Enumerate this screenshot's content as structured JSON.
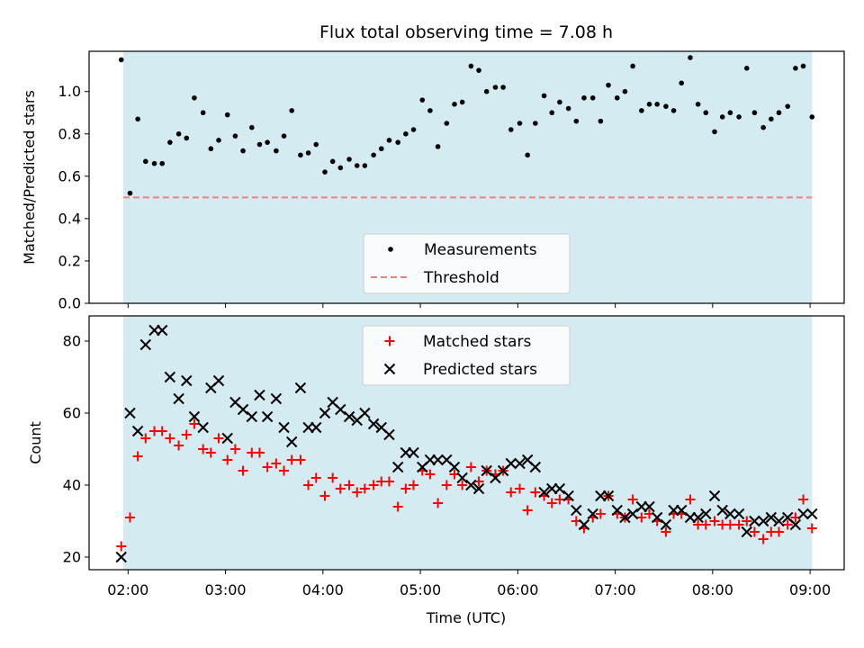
{
  "figure": {
    "title": "Flux total observing time = 7.08 h",
    "xlabel": "Time (UTC)",
    "x_ticks": [
      "02:00",
      "03:00",
      "04:00",
      "05:00",
      "06:00",
      "07:00",
      "08:00",
      "09:00"
    ]
  },
  "colors": {
    "shade": "#d4ebf1",
    "measurement": "#000000",
    "threshold": "#f07f7f",
    "matched": "#ff0000",
    "predicted": "#000000"
  },
  "chart_data": [
    {
      "type": "scatter",
      "ylabel": "Matched/Predicted stars",
      "xlim": [
        1.6,
        9.35
      ],
      "ylim": [
        0.0,
        1.19
      ],
      "y_ticks": [
        "0.0",
        "0.2",
        "0.4",
        "0.6",
        "0.8",
        "1.0"
      ],
      "shaded_span": [
        1.95,
        9.02
      ],
      "legend": {
        "placement": "lower-center",
        "entries": [
          "Measurements",
          "Threshold"
        ]
      },
      "threshold": {
        "name": "Threshold",
        "y": 0.5
      },
      "series": [
        {
          "name": "Measurements",
          "marker": "dot",
          "points": [
            [
              1.93,
              1.15
            ],
            [
              2.02,
              0.52
            ],
            [
              2.1,
              0.87
            ],
            [
              2.18,
              0.67
            ],
            [
              2.27,
              0.66
            ],
            [
              2.35,
              0.66
            ],
            [
              2.43,
              0.76
            ],
            [
              2.52,
              0.8
            ],
            [
              2.6,
              0.78
            ],
            [
              2.68,
              0.97
            ],
            [
              2.77,
              0.9
            ],
            [
              2.85,
              0.73
            ],
            [
              2.93,
              0.77
            ],
            [
              3.02,
              0.89
            ],
            [
              3.1,
              0.79
            ],
            [
              3.18,
              0.72
            ],
            [
              3.27,
              0.83
            ],
            [
              3.35,
              0.75
            ],
            [
              3.43,
              0.76
            ],
            [
              3.52,
              0.72
            ],
            [
              3.6,
              0.79
            ],
            [
              3.68,
              0.91
            ],
            [
              3.77,
              0.7
            ],
            [
              3.85,
              0.71
            ],
            [
              3.93,
              0.75
            ],
            [
              4.02,
              0.62
            ],
            [
              4.1,
              0.67
            ],
            [
              4.18,
              0.64
            ],
            [
              4.27,
              0.68
            ],
            [
              4.35,
              0.65
            ],
            [
              4.43,
              0.65
            ],
            [
              4.52,
              0.7
            ],
            [
              4.6,
              0.73
            ],
            [
              4.68,
              0.77
            ],
            [
              4.77,
              0.76
            ],
            [
              4.85,
              0.8
            ],
            [
              4.93,
              0.82
            ],
            [
              5.02,
              0.96
            ],
            [
              5.1,
              0.91
            ],
            [
              5.18,
              0.74
            ],
            [
              5.27,
              0.85
            ],
            [
              5.35,
              0.94
            ],
            [
              5.43,
              0.95
            ],
            [
              5.52,
              1.12
            ],
            [
              5.6,
              1.1
            ],
            [
              5.68,
              1.0
            ],
            [
              5.77,
              1.02
            ],
            [
              5.85,
              1.02
            ],
            [
              5.93,
              0.82
            ],
            [
              6.02,
              0.85
            ],
            [
              6.1,
              0.7
            ],
            [
              6.18,
              0.85
            ],
            [
              6.27,
              0.98
            ],
            [
              6.35,
              0.9
            ],
            [
              6.43,
              0.95
            ],
            [
              6.52,
              0.92
            ],
            [
              6.6,
              0.86
            ],
            [
              6.68,
              0.97
            ],
            [
              6.77,
              0.97
            ],
            [
              6.85,
              0.86
            ],
            [
              6.93,
              1.03
            ],
            [
              7.02,
              0.97
            ],
            [
              7.1,
              1.0
            ],
            [
              7.18,
              1.12
            ],
            [
              7.27,
              0.91
            ],
            [
              7.35,
              0.94
            ],
            [
              7.43,
              0.94
            ],
            [
              7.52,
              0.93
            ],
            [
              7.6,
              0.91
            ],
            [
              7.68,
              1.04
            ],
            [
              7.77,
              1.16
            ],
            [
              7.85,
              0.94
            ],
            [
              7.93,
              0.9
            ],
            [
              8.02,
              0.81
            ],
            [
              8.1,
              0.88
            ],
            [
              8.18,
              0.9
            ],
            [
              8.27,
              0.88
            ],
            [
              8.35,
              1.11
            ],
            [
              8.43,
              0.9
            ],
            [
              8.52,
              0.83
            ],
            [
              8.6,
              0.87
            ],
            [
              8.68,
              0.9
            ],
            [
              8.77,
              0.93
            ],
            [
              8.85,
              1.11
            ],
            [
              8.93,
              1.12
            ],
            [
              9.02,
              0.88
            ]
          ]
        }
      ]
    },
    {
      "type": "scatter",
      "ylabel": "Count",
      "xlim": [
        1.6,
        9.35
      ],
      "ylim": [
        16.5,
        87
      ],
      "y_ticks": [
        "20",
        "40",
        "60",
        "80"
      ],
      "shaded_span": [
        1.95,
        9.02
      ],
      "legend": {
        "placement": "upper-center",
        "entries": [
          "Matched stars",
          "Predicted stars"
        ]
      },
      "series": [
        {
          "name": "Matched stars",
          "marker": "plus",
          "points": [
            [
              1.93,
              23
            ],
            [
              2.02,
              31
            ],
            [
              2.1,
              48
            ],
            [
              2.18,
              53
            ],
            [
              2.27,
              55
            ],
            [
              2.35,
              55
            ],
            [
              2.43,
              53
            ],
            [
              2.52,
              51
            ],
            [
              2.6,
              54
            ],
            [
              2.68,
              57
            ],
            [
              2.77,
              50
            ],
            [
              2.85,
              49
            ],
            [
              2.93,
              53
            ],
            [
              3.02,
              47
            ],
            [
              3.1,
              50
            ],
            [
              3.18,
              44
            ],
            [
              3.27,
              49
            ],
            [
              3.35,
              49
            ],
            [
              3.43,
              45
            ],
            [
              3.52,
              46
            ],
            [
              3.6,
              44
            ],
            [
              3.68,
              47
            ],
            [
              3.77,
              47
            ],
            [
              3.85,
              40
            ],
            [
              3.93,
              42
            ],
            [
              4.02,
              37
            ],
            [
              4.1,
              42
            ],
            [
              4.18,
              39
            ],
            [
              4.27,
              40
            ],
            [
              4.35,
              38
            ],
            [
              4.43,
              39
            ],
            [
              4.52,
              40
            ],
            [
              4.6,
              41
            ],
            [
              4.68,
              41
            ],
            [
              4.77,
              34
            ],
            [
              4.85,
              39
            ],
            [
              4.93,
              40
            ],
            [
              5.02,
              44
            ],
            [
              5.1,
              43
            ],
            [
              5.18,
              35
            ],
            [
              5.27,
              40
            ],
            [
              5.35,
              43
            ],
            [
              5.43,
              40
            ],
            [
              5.52,
              45
            ],
            [
              5.6,
              41
            ],
            [
              5.68,
              44
            ],
            [
              5.77,
              43
            ],
            [
              5.85,
              44
            ],
            [
              5.93,
              38
            ],
            [
              6.02,
              39
            ],
            [
              6.1,
              33
            ],
            [
              6.18,
              38
            ],
            [
              6.27,
              37
            ],
            [
              6.35,
              35
            ],
            [
              6.43,
              36
            ],
            [
              6.52,
              36
            ],
            [
              6.6,
              30
            ],
            [
              6.68,
              28
            ],
            [
              6.77,
              31
            ],
            [
              6.85,
              32
            ],
            [
              6.93,
              37
            ],
            [
              7.02,
              32
            ],
            [
              7.1,
              31
            ],
            [
              7.18,
              36
            ],
            [
              7.27,
              31
            ],
            [
              7.35,
              32
            ],
            [
              7.43,
              30
            ],
            [
              7.52,
              27
            ],
            [
              7.6,
              32
            ],
            [
              7.68,
              32
            ],
            [
              7.77,
              36
            ],
            [
              7.85,
              29
            ],
            [
              7.93,
              29
            ],
            [
              8.02,
              30
            ],
            [
              8.1,
              29
            ],
            [
              8.18,
              29
            ],
            [
              8.27,
              29
            ],
            [
              8.35,
              30
            ],
            [
              8.43,
              27
            ],
            [
              8.52,
              25
            ],
            [
              8.6,
              27
            ],
            [
              8.68,
              27
            ],
            [
              8.77,
              29
            ],
            [
              8.85,
              31
            ],
            [
              8.93,
              36
            ],
            [
              9.02,
              28
            ]
          ]
        },
        {
          "name": "Predicted stars",
          "marker": "x",
          "points": [
            [
              1.93,
              20
            ],
            [
              2.02,
              60
            ],
            [
              2.1,
              55
            ],
            [
              2.18,
              79
            ],
            [
              2.27,
              83
            ],
            [
              2.35,
              83
            ],
            [
              2.43,
              70
            ],
            [
              2.52,
              64
            ],
            [
              2.6,
              69
            ],
            [
              2.68,
              59
            ],
            [
              2.77,
              56
            ],
            [
              2.85,
              67
            ],
            [
              2.93,
              69
            ],
            [
              3.02,
              53
            ],
            [
              3.1,
              63
            ],
            [
              3.18,
              61
            ],
            [
              3.27,
              59
            ],
            [
              3.35,
              65
            ],
            [
              3.43,
              59
            ],
            [
              3.52,
              64
            ],
            [
              3.6,
              56
            ],
            [
              3.68,
              52
            ],
            [
              3.77,
              67
            ],
            [
              3.85,
              56
            ],
            [
              3.93,
              56
            ],
            [
              4.02,
              60
            ],
            [
              4.1,
              63
            ],
            [
              4.18,
              61
            ],
            [
              4.27,
              59
            ],
            [
              4.35,
              58
            ],
            [
              4.43,
              60
            ],
            [
              4.52,
              57
            ],
            [
              4.6,
              56
            ],
            [
              4.68,
              54
            ],
            [
              4.77,
              45
            ],
            [
              4.85,
              49
            ],
            [
              4.93,
              49
            ],
            [
              5.02,
              45
            ],
            [
              5.1,
              47
            ],
            [
              5.18,
              47
            ],
            [
              5.27,
              47
            ],
            [
              5.35,
              45
            ],
            [
              5.43,
              42
            ],
            [
              5.52,
              40
            ],
            [
              5.6,
              39
            ],
            [
              5.68,
              44
            ],
            [
              5.77,
              42
            ],
            [
              5.85,
              44
            ],
            [
              5.93,
              46
            ],
            [
              6.02,
              46
            ],
            [
              6.1,
              47
            ],
            [
              6.18,
              45
            ],
            [
              6.27,
              38
            ],
            [
              6.35,
              39
            ],
            [
              6.43,
              39
            ],
            [
              6.52,
              37
            ],
            [
              6.6,
              33
            ],
            [
              6.68,
              29
            ],
            [
              6.77,
              32
            ],
            [
              6.85,
              37
            ],
            [
              6.93,
              37
            ],
            [
              7.02,
              33
            ],
            [
              7.1,
              31
            ],
            [
              7.18,
              32
            ],
            [
              7.27,
              34
            ],
            [
              7.35,
              34
            ],
            [
              7.43,
              31
            ],
            [
              7.52,
              29
            ],
            [
              7.6,
              33
            ],
            [
              7.68,
              33
            ],
            [
              7.77,
              31
            ],
            [
              7.85,
              31
            ],
            [
              7.93,
              32
            ],
            [
              8.02,
              37
            ],
            [
              8.1,
              33
            ],
            [
              8.18,
              32
            ],
            [
              8.27,
              32
            ],
            [
              8.35,
              27
            ],
            [
              8.43,
              30
            ],
            [
              8.52,
              30
            ],
            [
              8.6,
              31
            ],
            [
              8.68,
              30
            ],
            [
              8.77,
              31
            ],
            [
              8.85,
              29
            ],
            [
              8.93,
              32
            ],
            [
              9.02,
              32
            ]
          ]
        }
      ]
    }
  ]
}
